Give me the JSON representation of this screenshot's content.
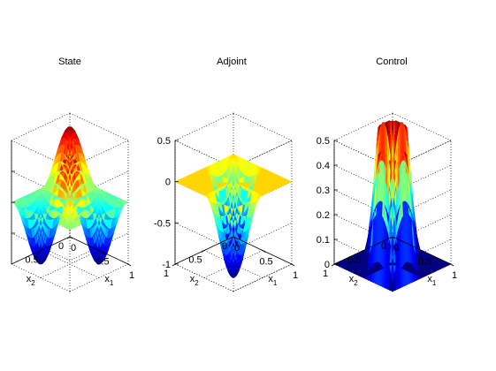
{
  "figure": {
    "colormap": "jet",
    "background": "#ffffff"
  },
  "chart_data": [
    {
      "type": "surface",
      "title": "State",
      "xlabel": "x",
      "xlabel_sub": "1",
      "ylabel": "x",
      "ylabel_sub": "2",
      "zlabel": "",
      "x_ticks": [
        "0",
        "0.5",
        "1"
      ],
      "y_ticks": [
        "0",
        "0.5"
      ],
      "z_ticks": [],
      "xlim": [
        0,
        1
      ],
      "ylim": [
        0,
        1
      ],
      "zlim": [
        -0.5,
        0.5
      ],
      "function": "0.5*sin(2*pi*x1)*sin(2*pi*x2)",
      "grid": true
    },
    {
      "type": "surface",
      "title": "Adjoint",
      "xlabel": "x",
      "xlabel_sub": "1",
      "ylabel": "x",
      "ylabel_sub": "2",
      "zlabel": "",
      "x_ticks": [
        "0",
        "0.5",
        "1"
      ],
      "y_ticks": [
        "0",
        "0.5",
        "1"
      ],
      "z_ticks": [
        "-1",
        "-0.5",
        "0",
        "0.5"
      ],
      "xlim": [
        0,
        1
      ],
      "ylim": [
        0,
        1
      ],
      "zlim": [
        -1,
        0.5
      ],
      "function": "min(0, -sin(2*pi*x1)*sin(2*pi*x2))",
      "grid": true
    },
    {
      "type": "surface",
      "title": "Control",
      "xlabel": "x",
      "xlabel_sub": "1",
      "ylabel": "x",
      "ylabel_sub": "2",
      "zlabel": "",
      "x_ticks": [
        "0",
        "0.5",
        "1"
      ],
      "y_ticks": [
        "0",
        "0.5",
        "1"
      ],
      "z_ticks": [
        "0",
        "0.1",
        "0.2",
        "0.3",
        "0.4",
        "0.5"
      ],
      "xlim": [
        0,
        1
      ],
      "ylim": [
        0,
        1
      ],
      "zlim": [
        0,
        0.5
      ],
      "function": "min(0.5, max(0, sin(2*pi*x1)*sin(2*pi*x2)))",
      "grid": true
    }
  ]
}
